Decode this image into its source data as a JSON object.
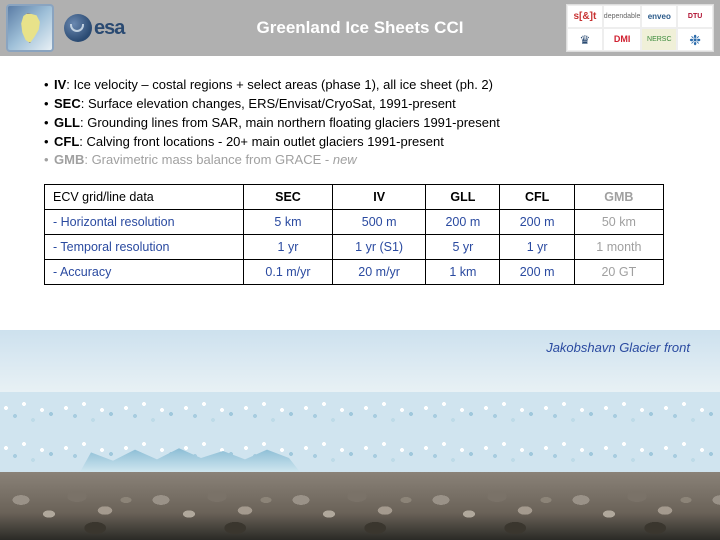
{
  "header": {
    "title": "Greenland Ice Sheets CCI",
    "logos": {
      "greenland": "greenland-map-icon",
      "esa_text": "esa",
      "partners": [
        "s[&]t",
        "dependable",
        "enveo",
        "DTU",
        "♛",
        "DMI",
        "NERSC",
        "❉"
      ]
    }
  },
  "bullets": [
    {
      "code": "IV",
      "text": ": Ice velocity – costal regions + select areas (phase 1), all ice sheet (ph. 2)",
      "muted": false
    },
    {
      "code": "SEC",
      "text": ": Surface elevation changes, ERS/Envisat/CryoSat, 1991-present",
      "muted": false
    },
    {
      "code": "GLL",
      "text": ": Grounding lines from SAR, main northern floating glaciers 1991-present",
      "muted": false
    },
    {
      "code": "CFL",
      "text": ": Calving front locations - 20+ main outlet glaciers 1991-present",
      "muted": false
    },
    {
      "code": "GMB",
      "text": ": Gravimetric mass balance from GRACE - ",
      "suffix_italic": "new",
      "muted": true
    }
  ],
  "table": {
    "columns": [
      "ECV grid/line data",
      "SEC",
      "IV",
      "GLL",
      "CFL",
      "GMB"
    ],
    "muted_cols": [
      false,
      false,
      false,
      false,
      false,
      true
    ],
    "rows": [
      {
        "label": "- Horizontal resolution",
        "cells": [
          "5 km",
          "500 m",
          "200 m",
          "200 m",
          "50 km"
        ]
      },
      {
        "label": "- Temporal resolution",
        "cells": [
          "1 yr",
          "1 yr (S1)",
          "5 yr",
          "1 yr",
          "1 month"
        ]
      },
      {
        "label": "- Accuracy",
        "cells": [
          "0.1 m/yr",
          "20 m/yr",
          "1 km",
          "200 m",
          "20 GT"
        ]
      }
    ],
    "header_color": "#000000",
    "row_label_color": "#2a4aa0",
    "value_color": "#2a4aa0",
    "muted_color": "#a0a0a0",
    "border_color": "#000000"
  },
  "photo": {
    "caption": "Jakobshavn Glacier front",
    "caption_color": "#2a4aa0",
    "sky_color": "#cde1ee",
    "ice_color": "#d0e4ef",
    "rock_color": "#8a8278"
  }
}
